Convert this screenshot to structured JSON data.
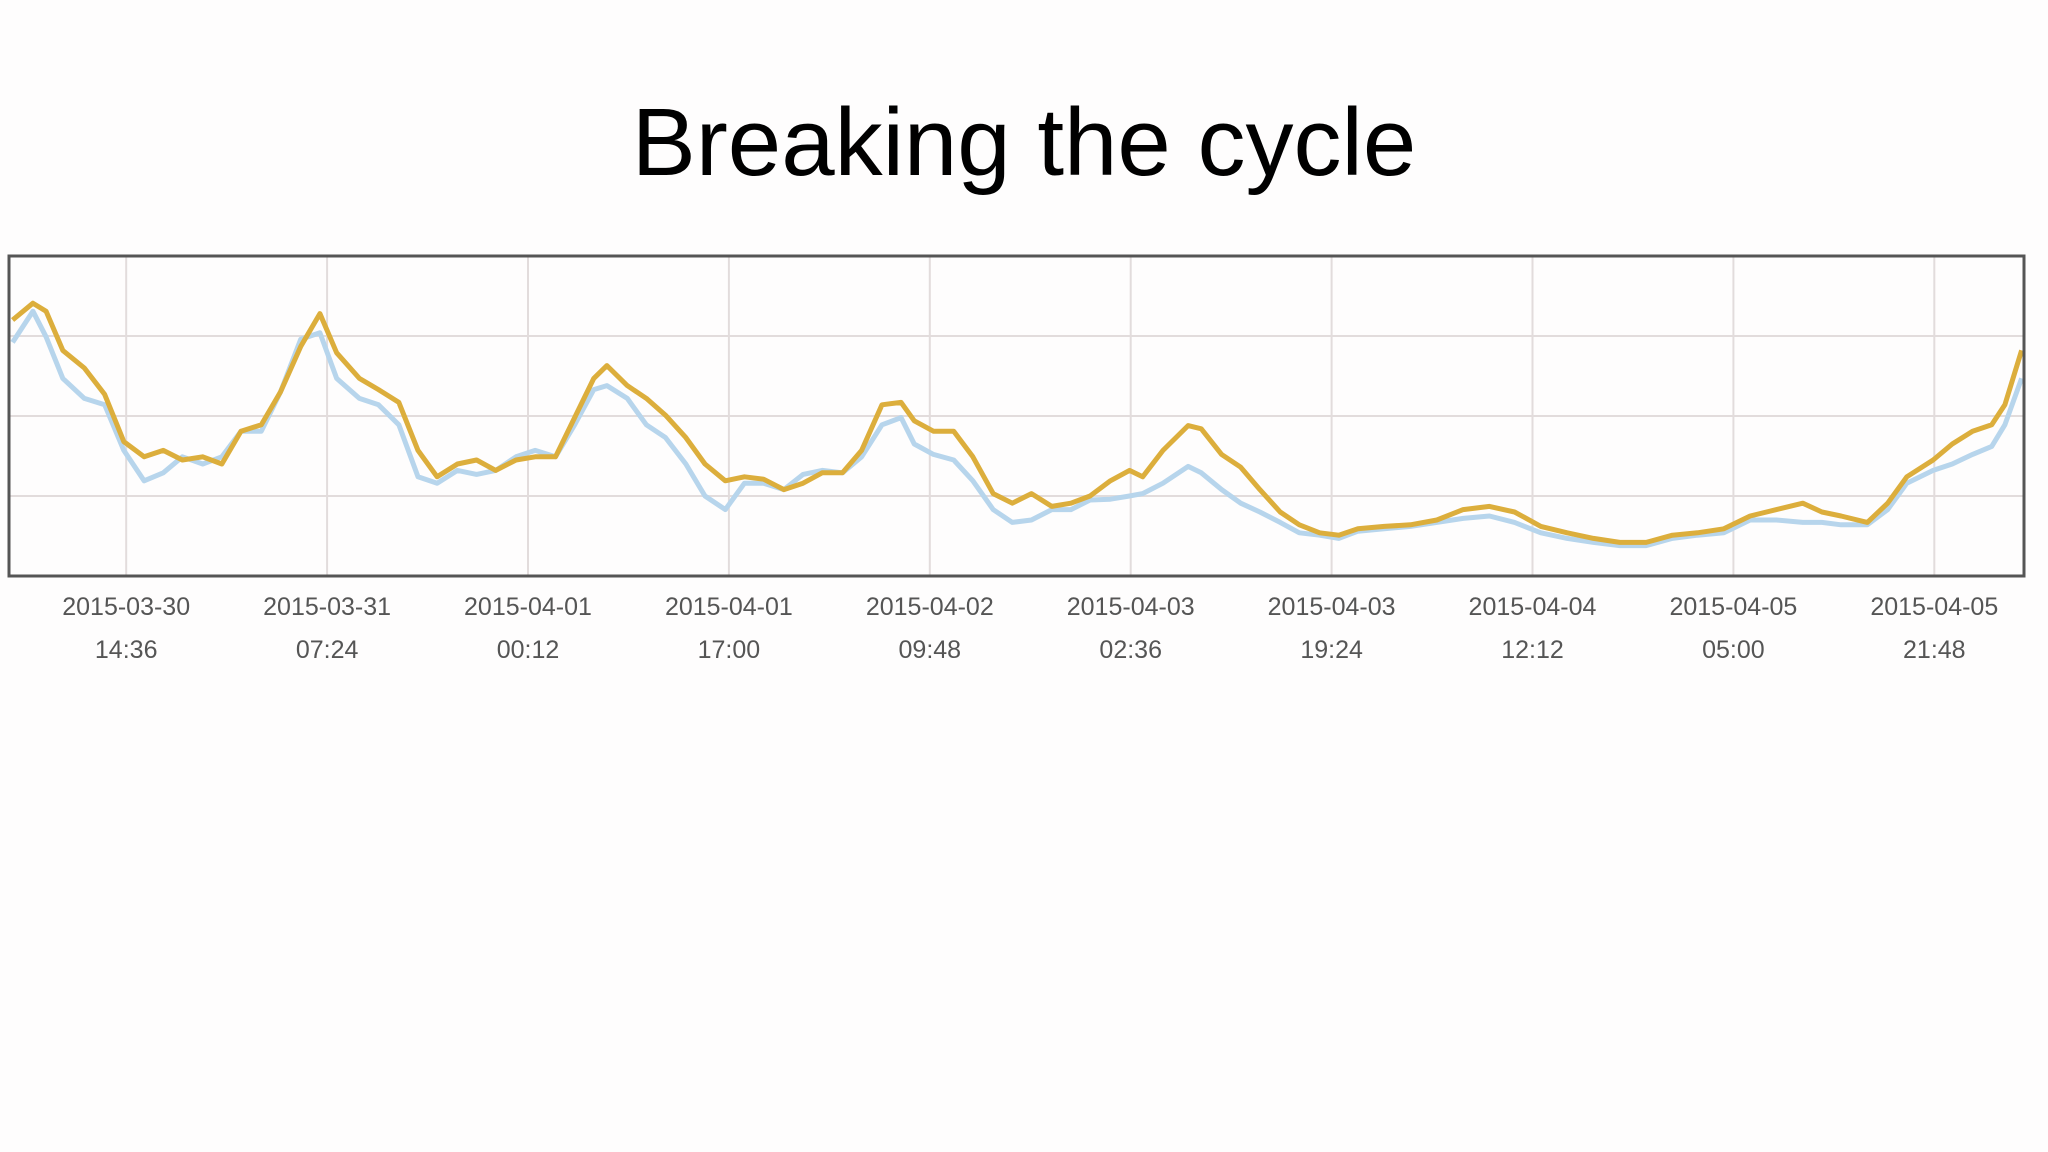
{
  "chart_data": {
    "type": "line",
    "title": "Breaking the cycle",
    "x": [
      5.1,
      6.8,
      7.9,
      9.3,
      11.1,
      12.8,
      14.4,
      16.1,
      17.7,
      19.3,
      21.0,
      22.6,
      24.2,
      25.9,
      27.5,
      29.2,
      30.8,
      32.2,
      34.1,
      35.7,
      37.4,
      39.0,
      40.6,
      42.3,
      43.9,
      45.5,
      47.2,
      48.8,
      50.5,
      52.1,
      53.7,
      54.8,
      56.5,
      58.1,
      59.7,
      61.4,
      63.0,
      64.7,
      66.3,
      67.9,
      69.6,
      71.2,
      72.8,
      74.5,
      76.1,
      77.8,
      79.4,
      80.5,
      82.1,
      83.8,
      85.4,
      87.1,
      88.7,
      90.3,
      92.0,
      93.6,
      95.2,
      96.9,
      98.5,
      99.6,
      101.3,
      103.4,
      104.5,
      106.2,
      107.8,
      109.4,
      111.1,
      112.7,
      114.4,
      116.0,
      117.6,
      119.8,
      122.0,
      124.2,
      126.4,
      128.6,
      130.7,
      132.9,
      135.1,
      137.3,
      139.5,
      141.7,
      143.9,
      146.0,
      148.2,
      150.4,
      152.6,
      154.8,
      156.4,
      158.0,
      160.2,
      161.9,
      163.5,
      165.7,
      167.3,
      169.0,
      170.6,
      171.7,
      173.1
    ],
    "series": [
      {
        "color": "#dcae3c",
        "values": [
          3.2,
          3.41,
          3.31,
          2.82,
          2.6,
          2.27,
          1.68,
          1.49,
          1.57,
          1.45,
          1.49,
          1.4,
          1.81,
          1.89,
          2.3,
          2.87,
          3.28,
          2.79,
          2.47,
          2.33,
          2.17,
          1.57,
          1.24,
          1.4,
          1.45,
          1.32,
          1.45,
          1.49,
          1.49,
          1.98,
          2.47,
          2.63,
          2.38,
          2.22,
          2.01,
          1.73,
          1.4,
          1.19,
          1.24,
          1.21,
          1.08,
          1.16,
          1.29,
          1.29,
          1.57,
          2.14,
          2.17,
          1.94,
          1.81,
          1.81,
          1.49,
          1.03,
          0.91,
          1.03,
          0.87,
          0.91,
          1.0,
          1.19,
          1.32,
          1.24,
          1.57,
          1.88,
          1.84,
          1.52,
          1.36,
          1.08,
          0.8,
          0.64,
          0.54,
          0.51,
          0.59,
          0.62,
          0.64,
          0.7,
          0.83,
          0.87,
          0.8,
          0.62,
          0.54,
          0.47,
          0.42,
          0.42,
          0.51,
          0.54,
          0.59,
          0.75,
          0.83,
          0.91,
          0.8,
          0.75,
          0.67,
          0.91,
          1.24,
          1.45,
          1.65,
          1.81,
          1.89,
          2.14,
          2.82
        ]
      },
      {
        "color": "#b7d5ec",
        "values": [
          2.92,
          3.31,
          2.99,
          2.47,
          2.22,
          2.14,
          1.57,
          1.19,
          1.29,
          1.49,
          1.4,
          1.49,
          1.81,
          1.81,
          2.3,
          2.96,
          3.04,
          2.47,
          2.22,
          2.14,
          1.89,
          1.24,
          1.16,
          1.32,
          1.27,
          1.32,
          1.49,
          1.57,
          1.49,
          1.89,
          2.33,
          2.38,
          2.22,
          1.89,
          1.73,
          1.4,
          1.0,
          0.83,
          1.16,
          1.16,
          1.08,
          1.27,
          1.32,
          1.29,
          1.49,
          1.89,
          1.98,
          1.65,
          1.52,
          1.45,
          1.19,
          0.83,
          0.67,
          0.7,
          0.83,
          0.83,
          0.95,
          0.96,
          1.0,
          1.03,
          1.16,
          1.37,
          1.29,
          1.08,
          0.91,
          0.8,
          0.67,
          0.54,
          0.51,
          0.47,
          0.56,
          0.59,
          0.62,
          0.67,
          0.72,
          0.75,
          0.67,
          0.54,
          0.47,
          0.42,
          0.38,
          0.38,
          0.47,
          0.51,
          0.54,
          0.7,
          0.7,
          0.67,
          0.67,
          0.64,
          0.64,
          0.83,
          1.16,
          1.32,
          1.4,
          1.52,
          1.62,
          1.89,
          2.47
        ]
      }
    ],
    "xlim": [
      4.8,
      173.3
    ],
    "xticks": [
      {
        "value": 14.6,
        "label": "2015-03-30\n14:36"
      },
      {
        "value": 31.4,
        "label": "2015-03-31\n07:24"
      },
      {
        "value": 48.2,
        "label": "2015-04-01\n00:12"
      },
      {
        "value": 65.0,
        "label": "2015-04-01\n17:00"
      },
      {
        "value": 81.8,
        "label": "2015-04-02\n09:48"
      },
      {
        "value": 98.6,
        "label": "2015-04-03\n02:36"
      },
      {
        "value": 115.4,
        "label": "2015-04-03\n19:24"
      },
      {
        "value": 132.2,
        "label": "2015-04-04\n12:12"
      },
      {
        "value": 149.0,
        "label": "2015-04-05\n05:00"
      },
      {
        "value": 165.8,
        "label": "2015-04-05\n21:48"
      }
    ],
    "ylim": [
      0,
      4
    ],
    "yticks": [
      1,
      2,
      3
    ],
    "grid": true
  }
}
